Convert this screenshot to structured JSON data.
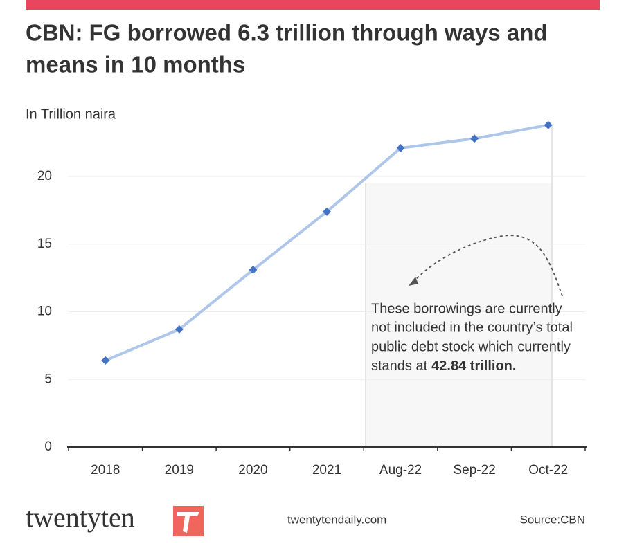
{
  "chart_data": {
    "type": "line",
    "title": [
      "CBN: FG borrowed 6.3 trillion through ways and",
      "means in 10 months"
    ],
    "subtitle": "In Trillion naira",
    "categories": [
      "2018",
      "2019",
      "2020",
      "2021",
      "Aug-22",
      "Sep-22",
      "Oct-22"
    ],
    "series": [
      {
        "name": "Ways and means",
        "color": "#aec6ea",
        "marker_color": "#4472c4",
        "values": [
          6.4,
          8.7,
          13.1,
          17.4,
          22.1,
          22.8,
          23.8
        ]
      }
    ],
    "ylim": [
      0,
      24
    ],
    "yticks": [
      0,
      5,
      10,
      15,
      20
    ],
    "grid": true,
    "annotation": [
      "These borrowings are currently",
      "not included in the country’s total",
      "public debt stock which currently",
      "stands at"
    ],
    "annotation_bold": "42.84 trillion."
  },
  "footer": {
    "logo": "twentyten",
    "website": "twentytendaily.com",
    "source": "Source:CBN"
  }
}
